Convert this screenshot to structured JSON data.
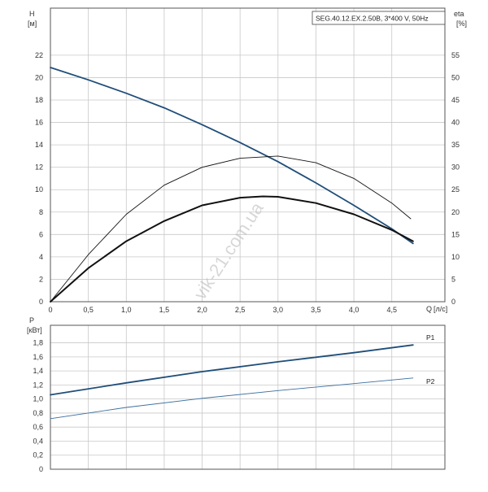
{
  "model_label": "SEG.40.12.EX.2.50B, 3*400 V, 50Hz",
  "watermark": "vik-21.com.ua",
  "colors": {
    "blue": "#1f4e79",
    "black": "#111111",
    "grid": "#c8c8c8"
  },
  "chart_data": [
    {
      "type": "line",
      "x_label": "Q",
      "x_unit": "[л/с]",
      "left_axis": {
        "label": "H",
        "unit": "[м]",
        "range": [
          0,
          24
        ],
        "ticks": [
          0,
          2,
          4,
          6,
          8,
          10,
          12,
          14,
          16,
          18,
          20,
          22
        ]
      },
      "right_axis": {
        "label": "eta",
        "unit": "[%]",
        "range": [
          0,
          60
        ],
        "ticks": [
          0,
          5,
          10,
          15,
          20,
          25,
          30,
          35,
          40,
          45,
          50,
          55
        ]
      },
      "x_range": [
        0,
        5.2
      ],
      "x_ticks": [
        "0",
        "0,5",
        "1,0",
        "1,5",
        "2,0",
        "2,5",
        "3,0",
        "3,5",
        "4,0",
        "4,5"
      ],
      "x_tick_values": [
        0,
        0.5,
        1.0,
        1.5,
        2.0,
        2.5,
        3.0,
        3.5,
        4.0,
        4.5
      ],
      "grid": true,
      "series": [
        {
          "axis": "left",
          "color": "#1f4e79",
          "width": 1.8,
          "x": [
            0,
            0.5,
            1.0,
            1.5,
            2.0,
            2.5,
            3.0,
            3.5,
            4.0,
            4.5,
            4.78
          ],
          "y": [
            20.9,
            19.8,
            18.6,
            17.3,
            15.8,
            14.2,
            12.5,
            10.6,
            8.6,
            6.5,
            5.2
          ]
        },
        {
          "axis": "right",
          "color": "#111111",
          "width": 0.9,
          "x": [
            0,
            0.5,
            1.0,
            1.5,
            2.0,
            2.5,
            3.0,
            3.5,
            4.0,
            4.5,
            4.75
          ],
          "y": [
            0,
            10.5,
            19.5,
            26.0,
            30.0,
            32.0,
            32.5,
            31.0,
            27.5,
            22.0,
            18.5
          ]
        },
        {
          "axis": "right",
          "color": "#111111",
          "width": 2.0,
          "x": [
            0,
            0.5,
            1.0,
            1.5,
            2.0,
            2.5,
            2.8,
            3.0,
            3.5,
            4.0,
            4.5,
            4.78
          ],
          "y": [
            0,
            7.5,
            13.5,
            18.0,
            21.5,
            23.2,
            23.5,
            23.4,
            22.0,
            19.5,
            16.0,
            13.5
          ]
        }
      ]
    },
    {
      "type": "line",
      "y_label": "P",
      "y_unit": "[кВт]",
      "y_range": [
        0,
        2.0
      ],
      "y_ticks": [
        "0",
        "0,2",
        "0,4",
        "0,6",
        "0,8",
        "1,0",
        "1,2",
        "1,4",
        "1,6",
        "1,8"
      ],
      "y_tick_values": [
        0,
        0.2,
        0.4,
        0.6,
        0.8,
        1.0,
        1.2,
        1.4,
        1.6,
        1.8
      ],
      "x_range": [
        0,
        5.2
      ],
      "x_tick_values": [
        0,
        0.5,
        1.0,
        1.5,
        2.0,
        2.5,
        3.0,
        3.5,
        4.0,
        4.5
      ],
      "grid": true,
      "series": [
        {
          "name": "P1",
          "color": "#1f4e79",
          "width": 1.8,
          "x": [
            0,
            1.0,
            2.0,
            3.0,
            4.0,
            4.78
          ],
          "y": [
            1.06,
            1.23,
            1.39,
            1.53,
            1.66,
            1.77
          ]
        },
        {
          "name": "P2",
          "color": "#3a6e9e",
          "width": 0.9,
          "x": [
            0,
            1.0,
            2.0,
            3.0,
            4.0,
            4.78
          ],
          "y": [
            0.72,
            0.88,
            1.01,
            1.12,
            1.22,
            1.3
          ]
        }
      ]
    }
  ]
}
